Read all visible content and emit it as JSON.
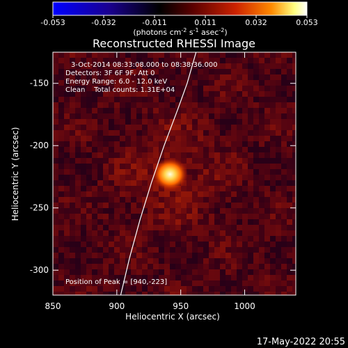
{
  "colorbar": {
    "ticks": [
      "-0.053",
      "-0.032",
      "-0.011",
      "0.011",
      "0.032",
      "0.053"
    ],
    "range": [
      -0.053,
      0.053
    ],
    "unit_main": "(photons cm",
    "unit_exp1": "-2",
    "unit_mid": " s",
    "unit_exp2": "-1",
    "unit_tail": " asec",
    "unit_exp3": "-2",
    "unit_close": ")"
  },
  "annotations": {
    "time_range": "3-Oct-2014 08:33:08.000 to 08:38:36.000",
    "detectors": "Detectors: 3F 6F 9F, Att 0",
    "energy": "Energy Range: 6.0 - 12.0 keV",
    "clean": "Clean    Total counts: 1.31E+04",
    "peak": "Position of Peak = [940,-223]"
  },
  "footer": {
    "date": "17-May-2022 20:55"
  },
  "chart_data": {
    "type": "heatmap",
    "title": "Reconstructed RHESSI Image",
    "xlabel": "Heliocentric X (arcsec)",
    "ylabel": "Heliocentric Y (arcsec)",
    "xlim": [
      850,
      1040
    ],
    "ylim": [
      -320,
      -125
    ],
    "xticks": [
      "850",
      "900",
      "950",
      "1000"
    ],
    "yticks": [
      "-150",
      "-200",
      "-250",
      "-300"
    ],
    "peak": {
      "x": 940,
      "y": -223,
      "value": 0.053
    },
    "background_level": 0.011,
    "colormap": [
      "#0000ff",
      "#1a0090",
      "#000000",
      "#5a0000",
      "#cc2200",
      "#ff8a00",
      "#ffff80",
      "#ffffff"
    ],
    "limb_curve": [
      [
        903,
        -320
      ],
      [
        910,
        -290
      ],
      [
        918,
        -260
      ],
      [
        927,
        -230
      ],
      [
        937,
        -200
      ],
      [
        948,
        -170
      ],
      [
        955,
        -150
      ],
      [
        962,
        -125
      ]
    ]
  }
}
